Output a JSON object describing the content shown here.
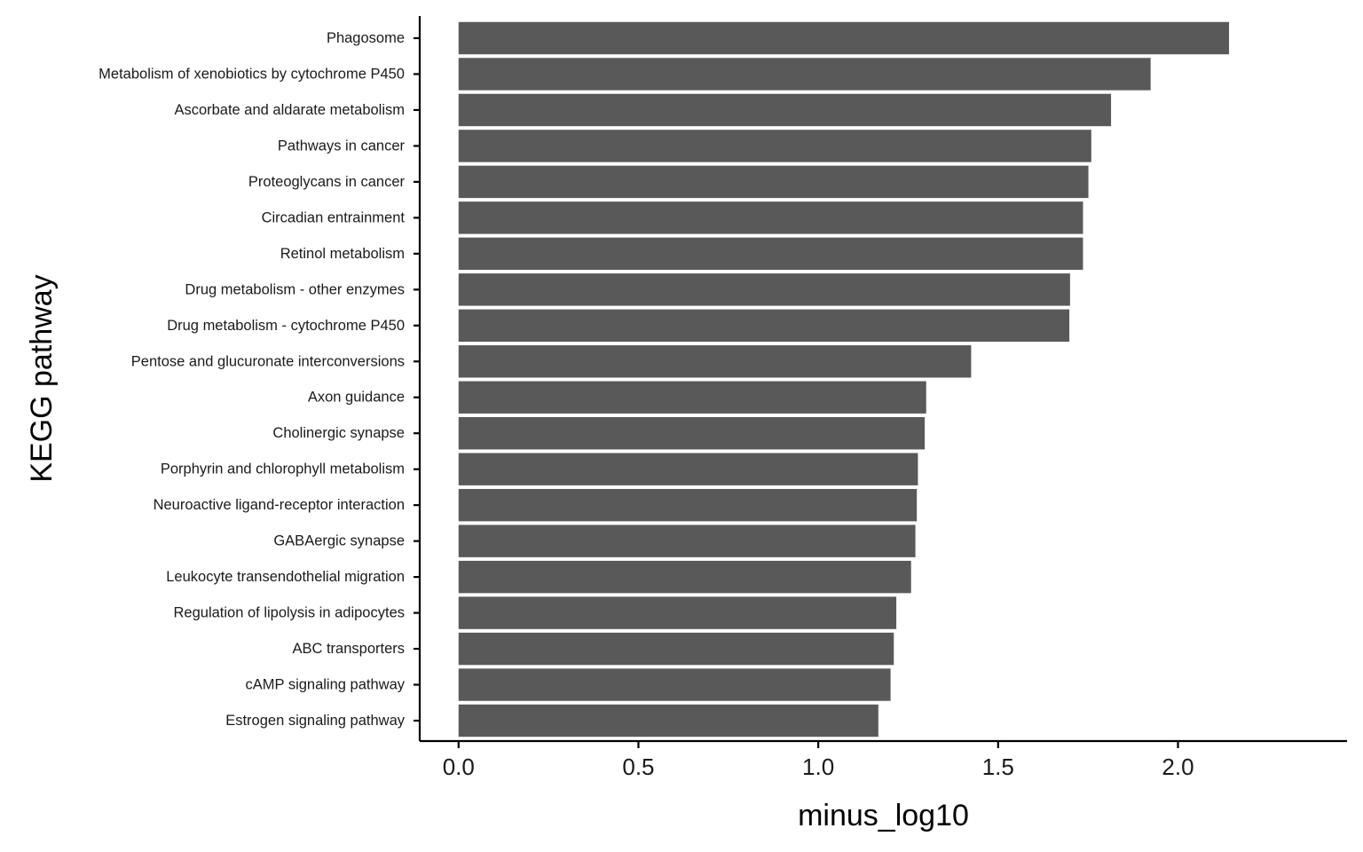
{
  "chart_data": {
    "type": "bar",
    "orientation": "horizontal",
    "title": "",
    "xlabel": "minus_log10",
    "ylabel": "KEGG pathway",
    "xlim": [
      -0.108,
      2.47
    ],
    "xticks": [
      0.0,
      0.5,
      1.0,
      1.5,
      2.0
    ],
    "xtick_labels": [
      "0.0",
      "0.5",
      "1.0",
      "1.5",
      "2.0"
    ],
    "grid": false,
    "legend": "none",
    "bar_color": "#595959",
    "categories": [
      "Phagosome",
      "Metabolism of xenobiotics by cytochrome P450",
      "Ascorbate and aldarate metabolism",
      "Pathways in cancer",
      "Proteoglycans in cancer",
      "Circadian entrainment",
      "Retinol metabolism",
      "Drug metabolism - other enzymes",
      "Drug metabolism - cytochrome P450",
      "Pentose and glucuronate interconversions",
      "Axon guidance",
      "Cholinergic synapse",
      "Porphyrin and chlorophyll metabolism",
      "Neuroactive ligand-receptor interaction",
      "GABAergic synapse",
      "Leukocyte transendothelial migration",
      "Regulation of lipolysis in adipocytes",
      "ABC transporters",
      "cAMP signaling pathway",
      "Estrogen signaling pathway"
    ],
    "values": [
      2.142,
      1.924,
      1.814,
      1.759,
      1.751,
      1.736,
      1.736,
      1.7,
      1.698,
      1.425,
      1.3,
      1.296,
      1.277,
      1.274,
      1.27,
      1.258,
      1.217,
      1.21,
      1.201,
      1.167
    ]
  }
}
